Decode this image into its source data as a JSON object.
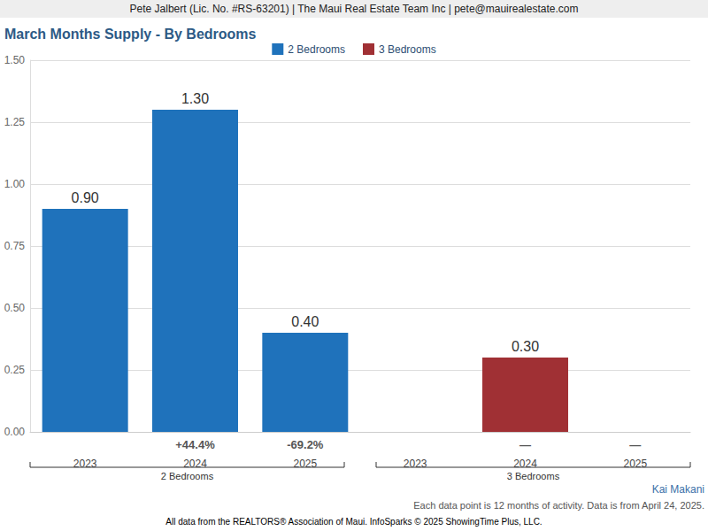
{
  "chart_data": {
    "type": "bar",
    "header": "Pete Jalbert (Lic. No. #RS-63201) | The Maui Real Estate Team Inc | pete@mauirealestate.com",
    "title": "March Months Supply - By Bedrooms",
    "categories": [
      "2023",
      "2024",
      "2025"
    ],
    "series": [
      {
        "name": "2 Bedrooms",
        "color": "#1f72bb",
        "values": [
          0.9,
          1.3,
          0.4
        ],
        "value_labels": [
          "0.90",
          "1.30",
          "0.40"
        ],
        "change_labels": [
          null,
          "+44.4%",
          "-69.2%"
        ]
      },
      {
        "name": "3 Bedrooms",
        "color": "#a03034",
        "values": [
          null,
          0.3,
          null
        ],
        "value_labels": [
          null,
          "0.30",
          null
        ],
        "change_labels": [
          null,
          "—",
          "—"
        ]
      }
    ],
    "ylim": [
      0,
      1.5
    ],
    "yticks": [
      {
        "value": 0,
        "label": "0.00"
      },
      {
        "value": 0.25,
        "label": "0.25"
      },
      {
        "value": 0.5,
        "label": "0.50"
      },
      {
        "value": 0.75,
        "label": "0.75"
      },
      {
        "value": 1,
        "label": "1.00"
      },
      {
        "value": 1.25,
        "label": "1.25"
      },
      {
        "value": 1.5,
        "label": "1.50"
      }
    ],
    "grid": true,
    "legend": "top",
    "data_labels": true,
    "credit": "Kai Makani",
    "footnote": "Each data point is 12 months of activity. Data is from April 24, 2025.",
    "source": "All data from the REALTORS® Association of Maui. InfoSparks © 2025 ShowingTime Plus, LLC."
  }
}
